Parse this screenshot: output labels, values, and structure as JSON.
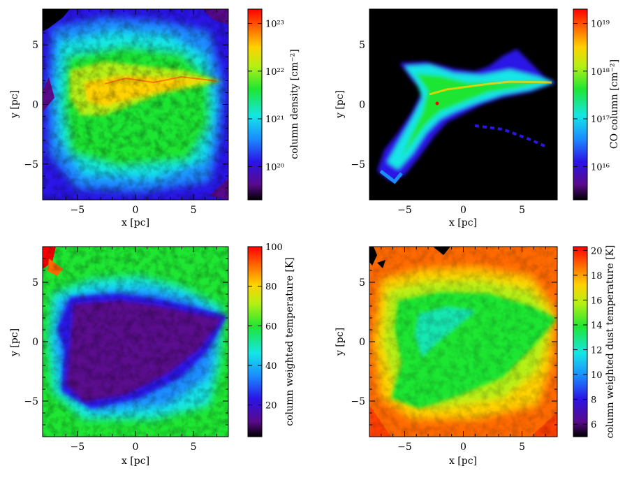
{
  "chart_data": [
    {
      "type": "heatmap",
      "id": "column-density",
      "xlabel": "x [pc]",
      "ylabel": "y [pc]",
      "xlim": [
        -8,
        8
      ],
      "ylim": [
        -8,
        8
      ],
      "xticks": [
        -5,
        0,
        5
      ],
      "yticks": [
        -5,
        0,
        5
      ],
      "xtick_labels": [
        "−5",
        "0",
        "5"
      ],
      "ytick_labels": [
        "−5",
        "0",
        "5"
      ],
      "colorbar": {
        "label": "column density [cm⁻²]",
        "scale": "log",
        "range": [
          2e+19,
          2e+23
        ],
        "ticks": [
          1e+20,
          1e+21,
          1e+22,
          1e+23
        ],
        "tick_labels": [
          "10²⁰",
          "10²¹",
          "10²²",
          "10²³"
        ]
      },
      "colormap": [
        "#000000",
        "#5a0a8c",
        "#2a14e6",
        "#1a8cff",
        "#14e6e6",
        "#1ee632",
        "#b4f014",
        "#ffd200",
        "#ff6a00",
        "#ff0000"
      ],
      "background": "#2a14e6"
    },
    {
      "type": "heatmap",
      "id": "co-column",
      "xlabel": "x [pc]",
      "ylabel": "y [pc]",
      "xlim": [
        -8,
        8
      ],
      "ylim": [
        -8,
        8
      ],
      "xticks": [
        -5,
        0,
        5
      ],
      "yticks": [
        -5,
        0,
        5
      ],
      "xtick_labels": [
        "−5",
        "0",
        "5"
      ],
      "ytick_labels": [
        "−5",
        "0",
        "5"
      ],
      "colorbar": {
        "label": "CO column [cm⁻²]",
        "scale": "log",
        "range": [
          2000000000000000.0,
          2e+19
        ],
        "ticks": [
          1e+16,
          1e+17,
          1e+18,
          1e+19
        ],
        "tick_labels": [
          "10¹⁶",
          "10¹⁷",
          "10¹⁸",
          "10¹⁹"
        ]
      },
      "colormap": [
        "#000000",
        "#5a0a8c",
        "#2a14e6",
        "#1a8cff",
        "#14e6e6",
        "#1ee632",
        "#b4f014",
        "#ffd200",
        "#ff6a00",
        "#ff0000"
      ],
      "background": "#000000"
    },
    {
      "type": "heatmap",
      "id": "gas-temperature",
      "xlabel": "x [pc]",
      "ylabel": "y [pc]",
      "xlim": [
        -8,
        8
      ],
      "ylim": [
        -8,
        8
      ],
      "xticks": [
        -5,
        0,
        5
      ],
      "yticks": [
        -5,
        0,
        5
      ],
      "xtick_labels": [
        "−5",
        "0",
        "5"
      ],
      "ytick_labels": [
        "−5",
        "0",
        "5"
      ],
      "colorbar": {
        "label": "column weighted temperature [K]",
        "scale": "linear",
        "range": [
          4,
          100
        ],
        "ticks": [
          20,
          40,
          60,
          80,
          100
        ],
        "tick_labels": [
          "20",
          "40",
          "60",
          "80",
          "100"
        ]
      },
      "colormap": [
        "#000000",
        "#5a0a8c",
        "#2a14e6",
        "#1a8cff",
        "#14e6e6",
        "#1ee632",
        "#b4f014",
        "#ffd200",
        "#ff6a00",
        "#ff0000"
      ],
      "background": "#1ee632"
    },
    {
      "type": "heatmap",
      "id": "dust-temperature",
      "xlabel": "x [pc]",
      "ylabel": "y [pc]",
      "xlim": [
        -8,
        8
      ],
      "ylim": [
        -8,
        8
      ],
      "xticks": [
        -5,
        0,
        5
      ],
      "yticks": [
        -5,
        0,
        5
      ],
      "xtick_labels": [
        "−5",
        "0",
        "5"
      ],
      "ytick_labels": [
        "−5",
        "0",
        "5"
      ],
      "colorbar": {
        "label": "column weighted dust temperature [K]",
        "scale": "linear",
        "range": [
          5,
          20.3
        ],
        "ticks": [
          6,
          8,
          10,
          12,
          14,
          16,
          18,
          20
        ],
        "tick_labels": [
          "6",
          "8",
          "10",
          "12",
          "14",
          "16",
          "18",
          "20"
        ]
      },
      "colormap": [
        "#000000",
        "#5a0a8c",
        "#2a14e6",
        "#1a8cff",
        "#14e6e6",
        "#1ee632",
        "#b4f014",
        "#ffd200",
        "#ff6a00",
        "#ff0000"
      ],
      "background": "#ff6a00"
    }
  ]
}
